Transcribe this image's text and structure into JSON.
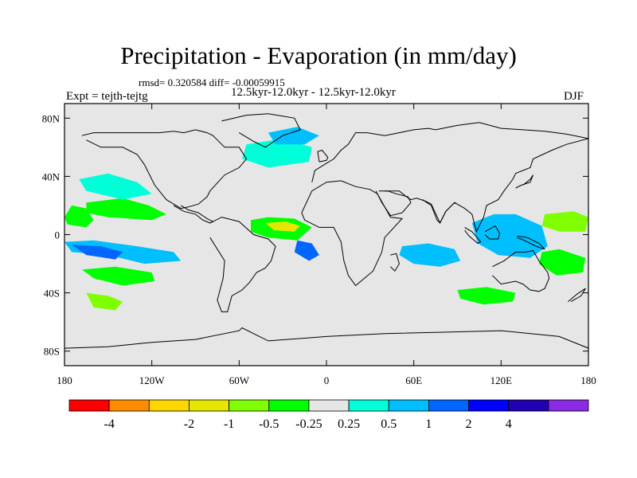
{
  "title": "Precipitation - Evaporation (in mm/day)",
  "stats": "rmsd= 0.320584 diff= -0.00059915",
  "subtitle": "12.5kyr-12.0kyr - 12.5kyr-12.0kyr",
  "experiment": "Expt = tejth-tejtg",
  "season": "DJF",
  "map": {
    "lat_range": [
      -90,
      90
    ],
    "lon_range": [
      -180,
      180
    ],
    "lat_ticks": [
      {
        "value": 80,
        "label": "80N"
      },
      {
        "value": 40,
        "label": "40N"
      },
      {
        "value": 0,
        "label": "0"
      },
      {
        "value": -40,
        "label": "40S"
      },
      {
        "value": -80,
        "label": "80S"
      }
    ],
    "lon_ticks": [
      {
        "value": -180,
        "label": "180"
      },
      {
        "value": -120,
        "label": "120W"
      },
      {
        "value": -60,
        "label": "60W"
      },
      {
        "value": 0,
        "label": "0"
      },
      {
        "value": 60,
        "label": "60E"
      },
      {
        "value": 120,
        "label": "120E"
      },
      {
        "value": 180,
        "label": "180"
      }
    ],
    "colors": {
      "background": "#e6e6e6",
      "coast": "#000000"
    }
  },
  "colorbar": {
    "colors": [
      "#ff0000",
      "#ff8c00",
      "#ffd700",
      "#e6e600",
      "#7fff00",
      "#00ff00",
      "#e6e6e6",
      "#00ffd9",
      "#00bfff",
      "#0066ff",
      "#0000ff",
      "#2000b0",
      "#8a2be2"
    ],
    "labels": [
      "-4",
      "-2",
      "-1",
      "-0.5",
      "-0.25",
      "0.25",
      "0.5",
      "1",
      "2",
      "4"
    ],
    "label_boundary_index": [
      1,
      3,
      4,
      5,
      6,
      7,
      8,
      9,
      10,
      11
    ]
  },
  "anomalies": [
    {
      "name": "west-pacific-itcz",
      "color": "#00ff00",
      "lon": [
        -180,
        -175,
        -165,
        -160,
        -165,
        -178
      ],
      "lat": [
        12,
        20,
        18,
        10,
        5,
        7
      ]
    },
    {
      "name": "central-pacific-green",
      "color": "#00ff00",
      "lon": [
        -165,
        -140,
        -122,
        -110,
        -120,
        -150,
        -165
      ],
      "lat": [
        22,
        25,
        20,
        14,
        10,
        12,
        15
      ]
    },
    {
      "name": "pacific-positive-band",
      "color": "#00bfff",
      "lon": [
        -180,
        -160,
        -130,
        -105,
        -100,
        -125,
        -150,
        -175
      ],
      "lat": [
        -5,
        -4,
        -8,
        -12,
        -18,
        -20,
        -14,
        -12
      ]
    },
    {
      "name": "pacific-strong-positive",
      "color": "#0066ff",
      "lon": [
        -175,
        -155,
        -140,
        -145,
        -165
      ],
      "lat": [
        -7,
        -8,
        -12,
        -17,
        -14
      ]
    },
    {
      "name": "spcz-green",
      "color": "#00ff00",
      "lon": [
        -168,
        -145,
        -120,
        -118,
        -140,
        -160
      ],
      "lat": [
        -24,
        -22,
        -26,
        -32,
        -35,
        -30
      ]
    },
    {
      "name": "atlantic-itcz-green",
      "color": "#00ff00",
      "lon": [
        -52,
        -40,
        -22,
        -10,
        -20,
        -40,
        -52
      ],
      "lat": [
        10,
        12,
        11,
        5,
        -4,
        -2,
        2
      ]
    },
    {
      "name": "atlantic-yellow",
      "color": "#e6e600",
      "lon": [
        -42,
        -28,
        -18,
        -22,
        -36
      ],
      "lat": [
        8,
        9,
        6,
        2,
        3
      ]
    },
    {
      "name": "south-atlantic-blue",
      "color": "#0066ff",
      "lon": [
        -20,
        -10,
        -5,
        -12,
        -22
      ],
      "lat": [
        -4,
        -6,
        -14,
        -18,
        -12
      ]
    },
    {
      "name": "indian-ocean-blue",
      "color": "#00bfff",
      "lon": [
        52,
        70,
        88,
        92,
        78,
        60,
        50
      ],
      "lat": [
        -8,
        -6,
        -10,
        -18,
        -22,
        -20,
        -14
      ]
    },
    {
      "name": "maritime-continent-strong",
      "color": "#0000ff",
      "lon": [
        115,
        125,
        138,
        142,
        130,
        116
      ],
      "lat": [
        2,
        6,
        4,
        -6,
        -10,
        -4
      ]
    },
    {
      "name": "maritime-ring",
      "color": "#00bfff",
      "lon": [
        100,
        115,
        130,
        148,
        152,
        140,
        118,
        104
      ],
      "lat": [
        8,
        14,
        14,
        6,
        -8,
        -16,
        -14,
        -6
      ]
    },
    {
      "name": "north-atlantic-cyan",
      "color": "#00ffd9",
      "lon": [
        -55,
        -30,
        -10,
        -12,
        -40,
        -58
      ],
      "lat": [
        62,
        66,
        60,
        50,
        46,
        52
      ]
    },
    {
      "name": "arctic-blue",
      "color": "#00bfff",
      "lon": [
        -40,
        -20,
        -5,
        -15,
        -35
      ],
      "lat": [
        70,
        74,
        68,
        62,
        62
      ]
    },
    {
      "name": "east-pacific-cyan",
      "color": "#00ffd9",
      "lon": [
        -170,
        -150,
        -130,
        -120,
        -140,
        -165
      ],
      "lat": [
        38,
        42,
        36,
        28,
        24,
        30
      ]
    },
    {
      "name": "west-pacific-green",
      "color": "#7fff00",
      "lon": [
        150,
        170,
        180,
        178,
        160,
        148
      ],
      "lat": [
        14,
        16,
        12,
        2,
        2,
        6
      ]
    },
    {
      "name": "australia-east-green",
      "color": "#00ff00",
      "lon": [
        148,
        160,
        178,
        176,
        158,
        146
      ],
      "lat": [
        -12,
        -10,
        -16,
        -26,
        -28,
        -20
      ]
    },
    {
      "name": "southern-ocean-green",
      "color": "#00ff00",
      "lon": [
        90,
        110,
        130,
        128,
        108,
        92
      ],
      "lat": [
        -38,
        -36,
        -40,
        -46,
        -48,
        -44
      ]
    },
    {
      "name": "southern-pacific-green",
      "color": "#7fff00",
      "lon": [
        -165,
        -150,
        -140,
        -145,
        -160
      ],
      "lat": [
        -40,
        -42,
        -46,
        -52,
        -50
      ]
    }
  ],
  "coastlines": [
    {
      "name": "north-america",
      "lon": [
        -165,
        -155,
        -140,
        -130,
        -125,
        -118,
        -110,
        -100,
        -95,
        -88,
        -82,
        -80,
        -70,
        -60,
        -55,
        -60,
        -70,
        -78,
        -82,
        -90,
        -98,
        -105,
        -115,
        -125,
        -140,
        -160,
        -168
      ],
      "lat": [
        65,
        60,
        60,
        55,
        48,
        34,
        24,
        18,
        19,
        21,
        26,
        30,
        41,
        46,
        52,
        60,
        60,
        68,
        70,
        72,
        70,
        71,
        70,
        70,
        70,
        70,
        68
      ]
    },
    {
      "name": "central-america",
      "lon": [
        -105,
        -98,
        -90,
        -85,
        -80,
        -78,
        -82,
        -88,
        -95,
        -100
      ],
      "lat": [
        20,
        16,
        14,
        10,
        8,
        9,
        11,
        15,
        17,
        20
      ]
    },
    {
      "name": "south-america",
      "lon": [
        -80,
        -72,
        -60,
        -50,
        -40,
        -35,
        -38,
        -42,
        -48,
        -53,
        -58,
        -65,
        -68,
        -72,
        -75,
        -71,
        -70,
        -80
      ],
      "lat": [
        8,
        12,
        9,
        0,
        -3,
        -8,
        -18,
        -23,
        -26,
        -33,
        -38,
        -42,
        -53,
        -53,
        -45,
        -30,
        -18,
        -2
      ]
    },
    {
      "name": "greenland",
      "lon": [
        -72,
        -55,
        -40,
        -22,
        -18,
        -30,
        -42,
        -50,
        -60
      ],
      "lat": [
        78,
        82,
        83,
        80,
        72,
        68,
        60,
        64,
        70
      ]
    },
    {
      "name": "europe",
      "lon": [
        -10,
        -8,
        0,
        5,
        10,
        15,
        20,
        28,
        40,
        50,
        60,
        70,
        75
      ],
      "lat": [
        36,
        44,
        49,
        52,
        58,
        62,
        70,
        70,
        68,
        70,
        72,
        73,
        72
      ]
    },
    {
      "name": "africa",
      "lon": [
        -17,
        -10,
        0,
        10,
        20,
        30,
        35,
        44,
        52,
        40,
        38,
        32,
        20,
        15,
        12,
        10,
        5,
        -5,
        -15,
        -17
      ],
      "lat": [
        15,
        30,
        36,
        37,
        33,
        31,
        28,
        12,
        11,
        -2,
        -12,
        -25,
        -35,
        -28,
        -18,
        -5,
        5,
        5,
        10,
        15
      ]
    },
    {
      "name": "madagascar",
      "lon": [
        44,
        48,
        50,
        47,
        44
      ],
      "lat": [
        -14,
        -13,
        -20,
        -25,
        -22
      ]
    },
    {
      "name": "asia",
      "lon": [
        40,
        50,
        55,
        58,
        62,
        68,
        72,
        78,
        82,
        88,
        95,
        100,
        103,
        108,
        110,
        118,
        122,
        128,
        130,
        140,
        142,
        155,
        165,
        180
      ],
      "lat": [
        30,
        30,
        26,
        24,
        25,
        23,
        21,
        8,
        16,
        22,
        18,
        14,
        2,
        12,
        20,
        24,
        30,
        38,
        42,
        46,
        52,
        58,
        62,
        66
      ]
    },
    {
      "name": "india",
      "lon": [
        66,
        72,
        76,
        78,
        80,
        82,
        87,
        89
      ],
      "lat": [
        24,
        20,
        10,
        8,
        12,
        16,
        21,
        22
      ]
    },
    {
      "name": "arabia",
      "lon": [
        34,
        38,
        44,
        52,
        58,
        56,
        48,
        42,
        36
      ],
      "lat": [
        30,
        22,
        13,
        15,
        22,
        26,
        28,
        30,
        30
      ]
    },
    {
      "name": "siberia",
      "lon": [
        75,
        90,
        105,
        120,
        135,
        150,
        165,
        180
      ],
      "lat": [
        72,
        75,
        77,
        73,
        72,
        71,
        69,
        66
      ]
    },
    {
      "name": "australia",
      "lon": [
        114,
        122,
        130,
        137,
        142,
        146,
        152,
        153,
        150,
        146,
        140,
        135,
        130,
        120,
        114
      ],
      "lat": [
        -22,
        -18,
        -12,
        -12,
        -11,
        -18,
        -26,
        -30,
        -37,
        -39,
        -38,
        -34,
        -32,
        -34,
        -28
      ]
    },
    {
      "name": "borneo",
      "lon": [
        109,
        116,
        119,
        118,
        112,
        109
      ],
      "lat": [
        2,
        6,
        1,
        -3,
        -3,
        0
      ]
    },
    {
      "name": "sumatra",
      "lon": [
        95,
        100,
        106,
        104,
        98,
        95
      ],
      "lat": [
        5,
        2,
        -5,
        -6,
        -1,
        3
      ]
    },
    {
      "name": "new-guinea",
      "lon": [
        131,
        138,
        146,
        150,
        144,
        136,
        131
      ],
      "lat": [
        -1,
        -2,
        -6,
        -10,
        -8,
        -4,
        -2
      ]
    },
    {
      "name": "japan",
      "lon": [
        130,
        134,
        140,
        142,
        140,
        135
      ],
      "lat": [
        32,
        34,
        36,
        41,
        38,
        34
      ]
    },
    {
      "name": "uk",
      "lon": [
        -5,
        0,
        1,
        -3,
        -6,
        -5
      ],
      "lat": [
        50,
        51,
        53,
        58,
        57,
        50
      ]
    },
    {
      "name": "new-zealand",
      "lon": [
        166,
        172,
        178,
        175,
        168
      ],
      "lat": [
        -46,
        -41,
        -37,
        -42,
        -46
      ]
    },
    {
      "name": "antarctica",
      "lon": [
        -180,
        -150,
        -120,
        -90,
        -60,
        -58,
        -40,
        0,
        40,
        80,
        120,
        160,
        180
      ],
      "lat": [
        -78,
        -77,
        -74,
        -72,
        -66,
        -64,
        -73,
        -70,
        -68,
        -67,
        -66,
        -70,
        -78
      ]
    }
  ]
}
